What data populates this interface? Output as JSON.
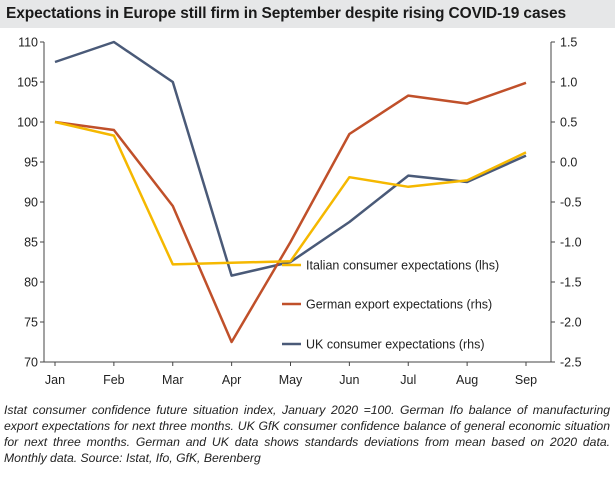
{
  "title": "Expectations in Europe still firm in September despite rising COVID-19 cases",
  "caption": "Istat consumer confidence future situation index, January 2020 =100. German Ifo balance of manufacturing export expectations for next three months. UK GfK consumer confidence balance of general economic situation for next three months. German and UK data shows standards deviations from mean based on 2020 data. Monthly data. Source: Istat, Ifo, GfK, Berenberg",
  "chart_data": {
    "type": "line",
    "categories": [
      "Jan",
      "Feb",
      "Mar",
      "Apr",
      "May",
      "Jun",
      "Jul",
      "Aug",
      "Sep"
    ],
    "y_left": {
      "min": 70,
      "max": 110,
      "step": 5,
      "ticks": [
        "70",
        "75",
        "80",
        "85",
        "90",
        "95",
        "100",
        "105",
        "110"
      ]
    },
    "y_right": {
      "min": -2.5,
      "max": 1.5,
      "step": 0.5,
      "ticks": [
        "-2.5",
        "-2.0",
        "-1.5",
        "-1.0",
        "-0.5",
        "0.0",
        "0.5",
        "1.0",
        "1.5"
      ]
    },
    "grid": false,
    "legend_position": "center-right",
    "series": [
      {
        "name": "Italian consumer expectations (lhs)",
        "axis": "left",
        "color": "#f5b800",
        "values": [
          100,
          98.3,
          82.2,
          82.4,
          82.6,
          93.1,
          91.9,
          92.7,
          96.2
        ]
      },
      {
        "name": "German export expectations (rhs)",
        "axis": "right",
        "color": "#c0502a",
        "values": [
          0.5,
          0.4,
          -0.55,
          -2.25,
          -1.0,
          0.35,
          0.83,
          0.73,
          0.99
        ]
      },
      {
        "name": "UK consumer expectations (rhs)",
        "axis": "right",
        "color": "#4a5a78",
        "values": [
          1.25,
          1.5,
          1.0,
          -1.42,
          -1.25,
          -0.75,
          -0.17,
          -0.25,
          0.08
        ]
      }
    ]
  }
}
